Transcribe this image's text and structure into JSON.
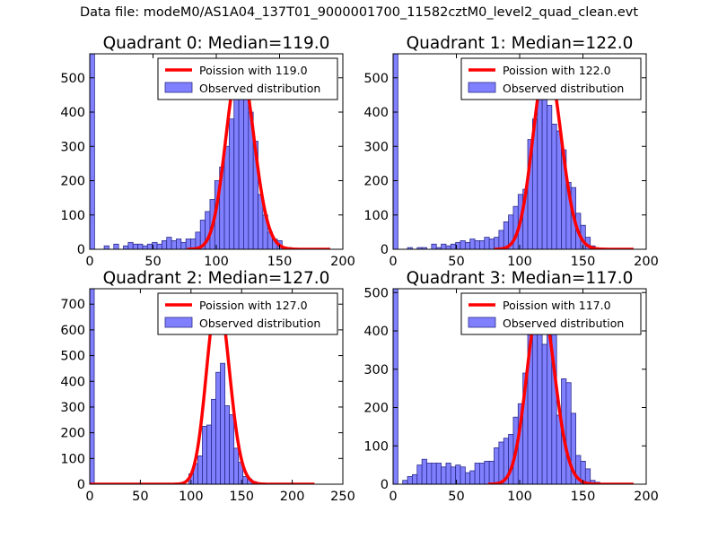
{
  "suptitle": "Data file: modeM0/AS1A04_137T01_9000001700_11582cztM0_level2_quad_clean.evt",
  "colors": {
    "bar_fill": "#8080ff",
    "bar_edge": "#2a2a8a",
    "poisson_line": "#ff0000",
    "axes": "#000000",
    "legend_edge": "#000000"
  },
  "chart_data": [
    {
      "type": "bar",
      "title": "Quadrant 0: Median=119.0",
      "median": 119.0,
      "xlim": [
        0,
        200
      ],
      "ylim": [
        0,
        570
      ],
      "xticks": [
        0,
        50,
        100,
        150,
        200
      ],
      "yticks": [
        0,
        100,
        200,
        300,
        400,
        500
      ],
      "legend": [
        "Poission with 119.0",
        "Observed distribution"
      ],
      "legend_loc": "upper right",
      "bin_width": 3.8,
      "bar_starts": [
        0,
        11.4,
        19,
        26.6,
        30.4,
        34.2,
        38,
        41.8,
        45.6,
        49.4,
        53.2,
        57,
        60.8,
        64.6,
        68.4,
        72.2,
        76,
        79.8,
        83.6,
        87.4,
        91.2,
        95,
        98.8,
        102.6,
        106.4,
        110.2,
        114,
        117.8,
        121.6,
        125.4,
        129.2,
        133,
        136.8,
        140.6,
        144.4,
        148.2,
        152,
        155.8
      ],
      "bar_values": [
        570,
        10,
        15,
        10,
        20,
        15,
        15,
        10,
        15,
        20,
        15,
        25,
        35,
        25,
        30,
        20,
        30,
        30,
        50,
        85,
        110,
        145,
        200,
        240,
        300,
        380,
        455,
        470,
        455,
        400,
        315,
        160,
        100,
        50,
        30,
        25,
        5,
        5
      ],
      "curve": {
        "lambda": 119.0,
        "peak": 545,
        "x_range": [
          77,
          190
        ]
      }
    },
    {
      "type": "bar",
      "title": "Quadrant 1: Median=122.0",
      "median": 122.0,
      "xlim": [
        0,
        200
      ],
      "ylim": [
        0,
        570
      ],
      "xticks": [
        0,
        50,
        100,
        150,
        200
      ],
      "yticks": [
        0,
        100,
        200,
        300,
        400,
        500
      ],
      "legend": [
        "Poission with 122.0",
        "Observed distribution"
      ],
      "legend_loc": "upper right",
      "bin_width": 3.8,
      "bar_starts": [
        0,
        11.4,
        19,
        22.8,
        30.4,
        34.2,
        38,
        41.8,
        45.6,
        49.4,
        53.2,
        57,
        60.8,
        64.6,
        68.4,
        72.2,
        76,
        79.8,
        83.6,
        87.4,
        91.2,
        95,
        98.8,
        102.6,
        106.4,
        110.2,
        114,
        117.8,
        121.6,
        125.4,
        129.2,
        133,
        136.8,
        140.6,
        144.4,
        148.2,
        152,
        155.8
      ],
      "bar_values": [
        570,
        5,
        5,
        5,
        15,
        5,
        15,
        10,
        15,
        20,
        25,
        20,
        30,
        25,
        25,
        35,
        30,
        35,
        55,
        80,
        100,
        125,
        160,
        175,
        320,
        380,
        465,
        440,
        420,
        365,
        345,
        290,
        195,
        180,
        105,
        70,
        35,
        10
      ],
      "curve": {
        "lambda": 122.0,
        "peak": 548,
        "x_range": [
          80,
          190
        ]
      }
    },
    {
      "type": "bar",
      "title": "Quadrant 2: Median=127.0",
      "median": 127.0,
      "xlim": [
        0,
        250
      ],
      "ylim": [
        0,
        760
      ],
      "xticks": [
        0,
        50,
        100,
        150,
        200,
        250
      ],
      "yticks": [
        0,
        100,
        200,
        300,
        400,
        500,
        600,
        700
      ],
      "legend": [
        "Poission with 127.0",
        "Observed distribution"
      ],
      "legend_loc": "upper right",
      "bin_width": 4.45,
      "bar_starts": [
        0,
        97.9,
        102.35,
        106.8,
        111.25,
        115.7,
        120.15,
        124.6,
        129.05,
        133.5,
        137.95,
        142.4,
        146.85,
        151.3,
        155.75,
        160.2
      ],
      "bar_values": [
        760,
        40,
        80,
        110,
        225,
        230,
        330,
        435,
        470,
        305,
        270,
        140,
        85,
        30,
        20,
        10
      ],
      "curve": {
        "lambda": 127.0,
        "peak": 730,
        "x_range": [
          0,
          222
        ]
      }
    },
    {
      "type": "bar",
      "title": "Quadrant 3: Median=117.0",
      "median": 117.0,
      "xlim": [
        0,
        200
      ],
      "ylim": [
        0,
        510
      ],
      "xticks": [
        0,
        50,
        100,
        150,
        200
      ],
      "yticks": [
        0,
        100,
        200,
        300,
        400,
        500
      ],
      "legend": [
        "Poission with 117.0",
        "Observed distribution"
      ],
      "legend_loc": "upper right",
      "bin_width": 3.8,
      "bar_starts": [
        0,
        7.6,
        11.4,
        15.2,
        19,
        22.8,
        26.6,
        30.4,
        34.2,
        38,
        41.8,
        45.6,
        49.4,
        53.2,
        57,
        60.8,
        64.6,
        68.4,
        72.2,
        76,
        79.8,
        83.6,
        87.4,
        91.2,
        95,
        98.8,
        102.6,
        106.4,
        110.2,
        114,
        117.8,
        121.6,
        125.4,
        129.2,
        133,
        136.8,
        140.6,
        144.4,
        148.2,
        152,
        155.8,
        159.6
      ],
      "bar_values": [
        510,
        10,
        20,
        25,
        50,
        65,
        55,
        55,
        55,
        45,
        55,
        45,
        50,
        45,
        30,
        35,
        55,
        55,
        60,
        60,
        95,
        110,
        120,
        130,
        175,
        210,
        290,
        390,
        430,
        460,
        365,
        400,
        420,
        180,
        275,
        265,
        185,
        75,
        60,
        40,
        10,
        5
      ],
      "curve": {
        "lambda": 117.0,
        "peak": 485,
        "x_range": [
          75,
          190
        ]
      }
    }
  ]
}
